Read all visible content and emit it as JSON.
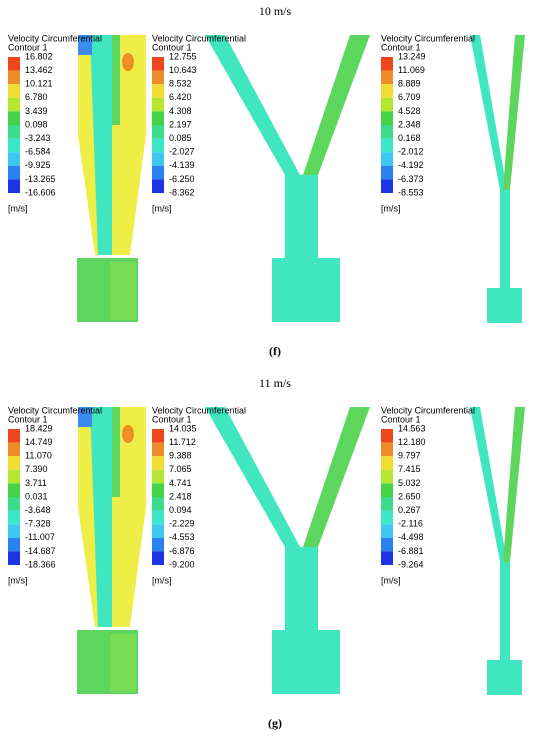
{
  "panels": [
    {
      "title": "10 m/s",
      "caption": "(f)",
      "legends": [
        {
          "title": "Velocity Circumferential",
          "subtitle": "Contour 1",
          "values": [
            "16.802",
            "13.462",
            "10.121",
            "6.780",
            "3.439",
            "0.098",
            "-3.243",
            "-6.584",
            "-9.925",
            "-13.265",
            "-16.606"
          ],
          "unit": "[m/s]"
        },
        {
          "title": "Velocity Circumferential",
          "subtitle": "Contour 1",
          "values": [
            "12.755",
            "10.643",
            "8.532",
            "6.420",
            "4.308",
            "2.197",
            "0.085",
            "-2.027",
            "-4.139",
            "-6.250",
            "-8.362"
          ],
          "unit": "[m/s]"
        },
        {
          "title": "Velocity Circumferential",
          "subtitle": "Contour 1",
          "values": [
            "13.249",
            "11.069",
            "8.889",
            "6.709",
            "4.528",
            "2.348",
            "0.168",
            "-2.012",
            "-4.192",
            "-6.373",
            "-8.553"
          ],
          "unit": "[m/s]"
        }
      ]
    },
    {
      "title": "11 m/s",
      "caption": "(g)",
      "legends": [
        {
          "title": "Velocity Circumferential",
          "subtitle": "Contour 1",
          "values": [
            "18.429",
            "14.749",
            "11.070",
            "7.390",
            "3.711",
            "0.031",
            "-3.648",
            "-7.328",
            "-11.007",
            "-14.687",
            "-18.366"
          ],
          "unit": "[m/s]"
        },
        {
          "title": "Velocity Circumferential",
          "subtitle": "Contour 1",
          "values": [
            "14.035",
            "11.712",
            "9.388",
            "7.065",
            "4.741",
            "2.418",
            "0.094",
            "-2.229",
            "-4.553",
            "-6.876",
            "-9.200"
          ],
          "unit": "[m/s]"
        },
        {
          "title": "Velocity Circumferential",
          "subtitle": "Contour 1",
          "values": [
            "14.563",
            "12.180",
            "9.797",
            "7.415",
            "5.032",
            "2.650",
            "0.267",
            "-2.116",
            "-4.498",
            "-6.881",
            "-9.264"
          ],
          "unit": "[m/s]"
        }
      ]
    }
  ]
}
